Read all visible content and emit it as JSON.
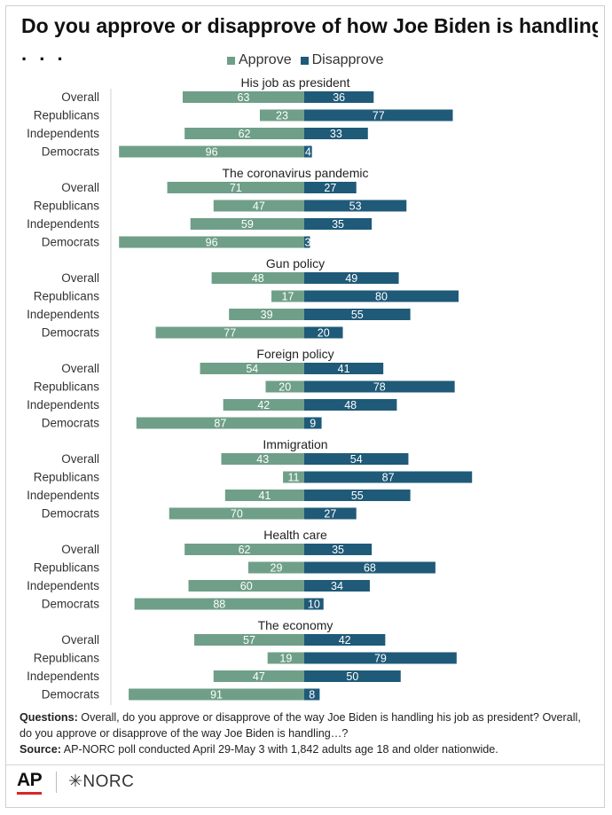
{
  "title": "Do you approve or disapprove of how Joe Biden is handling",
  "title_continuation": ". . .",
  "colors": {
    "approve": "#6f9f88",
    "disapprove": "#1f5a78"
  },
  "chart_data": {
    "type": "bar",
    "orientation": "horizontal",
    "stacking": "diverging",
    "xlim": [
      -100,
      100
    ],
    "grid": false,
    "legend_position": "top",
    "series_names": [
      "Approve",
      "Disapprove"
    ],
    "groups": [
      {
        "label": "His job as president",
        "rows": [
          {
            "label": "Overall",
            "approve": 63,
            "disapprove": 36
          },
          {
            "label": "Republicans",
            "approve": 23,
            "disapprove": 77
          },
          {
            "label": "Independents",
            "approve": 62,
            "disapprove": 33
          },
          {
            "label": "Democrats",
            "approve": 96,
            "disapprove": 4
          }
        ]
      },
      {
        "label": "The coronavirus pandemic",
        "rows": [
          {
            "label": "Overall",
            "approve": 71,
            "disapprove": 27
          },
          {
            "label": "Republicans",
            "approve": 47,
            "disapprove": 53
          },
          {
            "label": "Independents",
            "approve": 59,
            "disapprove": 35
          },
          {
            "label": "Democrats",
            "approve": 96,
            "disapprove": 3
          }
        ]
      },
      {
        "label": "Gun policy",
        "rows": [
          {
            "label": "Overall",
            "approve": 48,
            "disapprove": 49
          },
          {
            "label": "Republicans",
            "approve": 17,
            "disapprove": 80
          },
          {
            "label": "Independents",
            "approve": 39,
            "disapprove": 55
          },
          {
            "label": "Democrats",
            "approve": 77,
            "disapprove": 20
          }
        ]
      },
      {
        "label": "Foreign policy",
        "rows": [
          {
            "label": "Overall",
            "approve": 54,
            "disapprove": 41
          },
          {
            "label": "Republicans",
            "approve": 20,
            "disapprove": 78
          },
          {
            "label": "Independents",
            "approve": 42,
            "disapprove": 48
          },
          {
            "label": "Democrats",
            "approve": 87,
            "disapprove": 9
          }
        ]
      },
      {
        "label": "Immigration",
        "rows": [
          {
            "label": "Overall",
            "approve": 43,
            "disapprove": 54
          },
          {
            "label": "Republicans",
            "approve": 11,
            "disapprove": 87
          },
          {
            "label": "Independents",
            "approve": 41,
            "disapprove": 55
          },
          {
            "label": "Democrats",
            "approve": 70,
            "disapprove": 27
          }
        ]
      },
      {
        "label": "Health care",
        "rows": [
          {
            "label": "Overall",
            "approve": 62,
            "disapprove": 35
          },
          {
            "label": "Republicans",
            "approve": 29,
            "disapprove": 68
          },
          {
            "label": "Independents",
            "approve": 60,
            "disapprove": 34
          },
          {
            "label": "Democrats",
            "approve": 88,
            "disapprove": 10
          }
        ]
      },
      {
        "label": "The economy",
        "rows": [
          {
            "label": "Overall",
            "approve": 57,
            "disapprove": 42
          },
          {
            "label": "Republicans",
            "approve": 19,
            "disapprove": 79
          },
          {
            "label": "Independents",
            "approve": 47,
            "disapprove": 50
          },
          {
            "label": "Democrats",
            "approve": 91,
            "disapprove": 8
          }
        ]
      }
    ]
  },
  "notes": {
    "questions_label": "Questions:",
    "questions_text": "Overall, do you approve or disapprove of the way Joe Biden is handling his job as president? Overall, do you approve or disapprove of the way Joe Biden is handling…?",
    "source_label": "Source:",
    "source_text": "AP-NORC poll conducted April 29-May 3 with 1,842 adults age 18 and older nationwide."
  },
  "logos": {
    "ap": "AP",
    "norc": "✳NORC"
  }
}
